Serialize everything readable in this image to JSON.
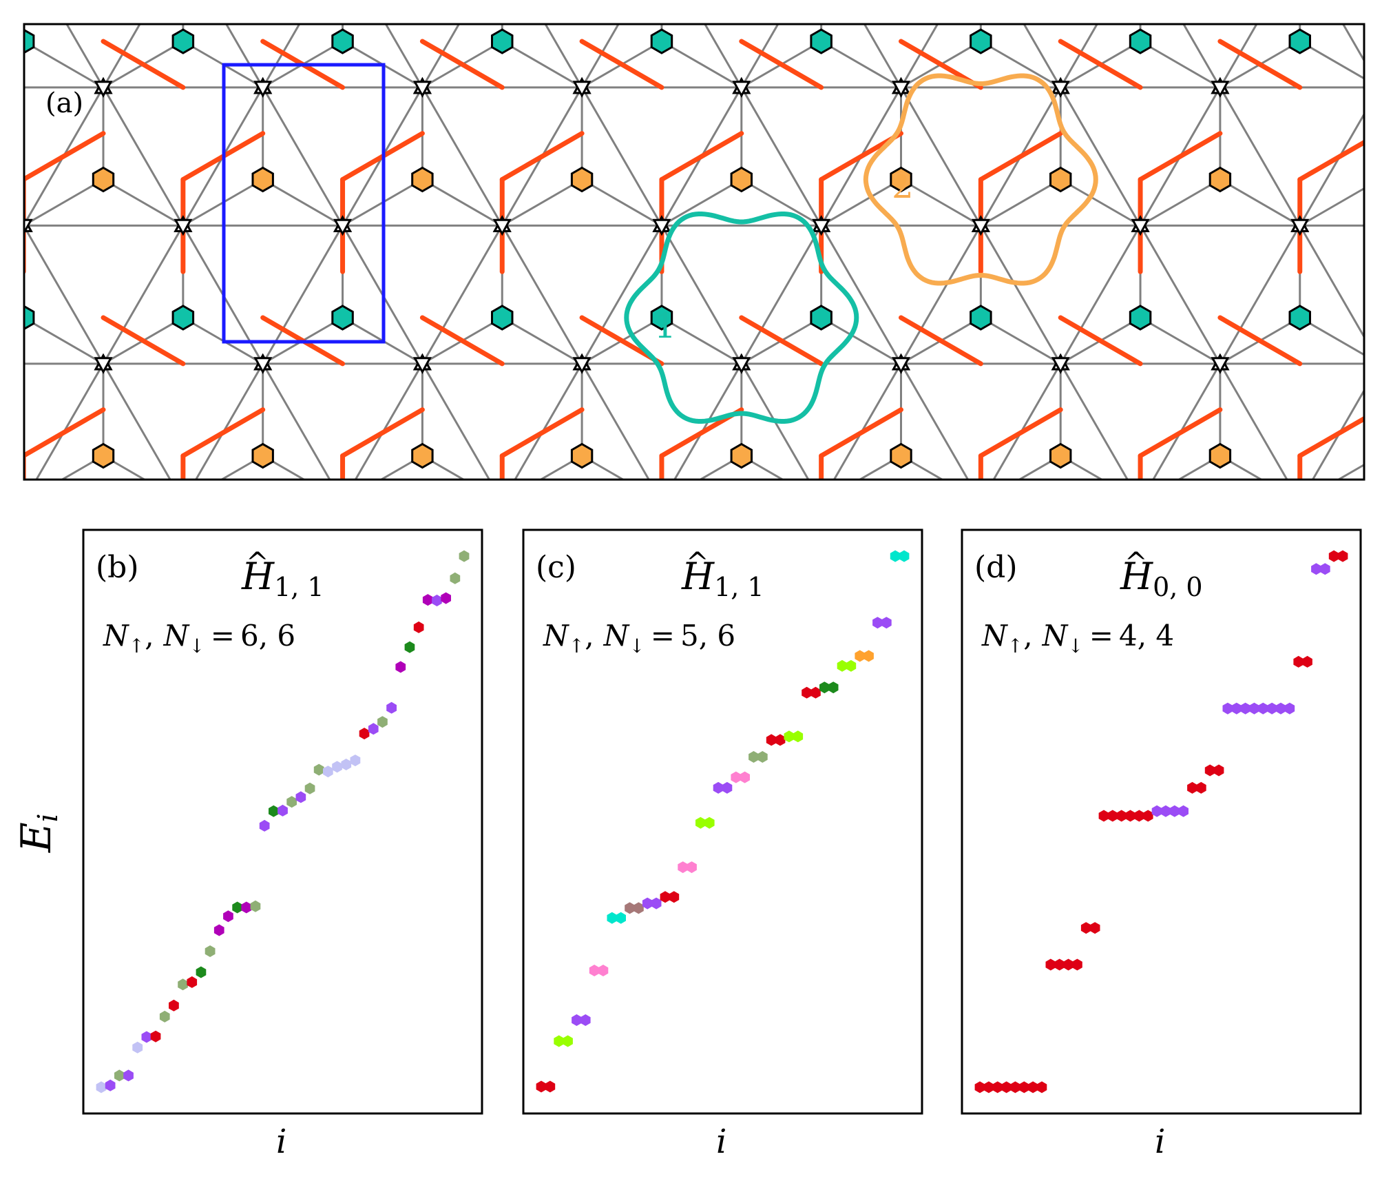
{
  "panel_a": {
    "label": "(a)",
    "loop1_label": "1",
    "loop2_label": "2",
    "colors": {
      "bond": "#808080",
      "strong_bond": "#ff4a14",
      "site_teal": "#10c2a8",
      "site_orange": "#f9a947",
      "unit_cell": "#1a1aff",
      "loop1": "#14bfa5",
      "loop2": "#f8ab4f"
    }
  },
  "shared": {
    "ylabel": "E",
    "ylabel_sub": "i",
    "xlabel": "i",
    "hat": "^",
    "comma": ",",
    "equals": "="
  },
  "chart_data": [
    {
      "type": "scatter",
      "panel_label": "(b)",
      "operator": "H",
      "operator_sub": "1, 1",
      "annotation": {
        "n_up": "N",
        "up_arrow": "↑",
        "n_down": "N",
        "down_arrow": "↓",
        "values": "6,  6"
      },
      "xlabel": "i",
      "ylabel": "E_i",
      "ylim": [
        0,
        100
      ],
      "points": [
        [
          1,
          4.5,
          "#c2c2f5"
        ],
        [
          2,
          4.8,
          "#9b4cf5"
        ],
        [
          3,
          6.5,
          "#8faf75"
        ],
        [
          4,
          6.5,
          "#9b4cf5"
        ],
        [
          5,
          11.3,
          "#c2c2f5"
        ],
        [
          6,
          13.1,
          "#9b4cf5"
        ],
        [
          7,
          13.2,
          "#de0014"
        ],
        [
          8,
          16.6,
          "#8faf75"
        ],
        [
          9,
          18.5,
          "#de0014"
        ],
        [
          10,
          22.1,
          "#8faf75"
        ],
        [
          11,
          22.5,
          "#de0014"
        ],
        [
          12,
          24.2,
          "#1c8a1c"
        ],
        [
          13,
          27.8,
          "#8faf75"
        ],
        [
          14,
          31.4,
          "#b000b8"
        ],
        [
          15,
          33.8,
          "#b000b8"
        ],
        [
          16,
          35.3,
          "#1c8a1c"
        ],
        [
          17,
          35.3,
          "#b000b8"
        ],
        [
          18,
          35.5,
          "#8faf75"
        ],
        [
          19,
          49.3,
          "#9b4cf5"
        ],
        [
          20,
          51.8,
          "#1c8a1c"
        ],
        [
          21,
          51.9,
          "#9b4cf5"
        ],
        [
          22,
          53.4,
          "#8faf75"
        ],
        [
          23,
          54.2,
          "#9b4cf5"
        ],
        [
          24,
          55.7,
          "#8faf75"
        ],
        [
          25,
          58.9,
          "#8faf75"
        ],
        [
          26,
          58.6,
          "#c2c2f5"
        ],
        [
          27,
          59.4,
          "#c2c2f5"
        ],
        [
          28,
          59.8,
          "#c2c2f5"
        ],
        [
          29,
          60.5,
          "#c2c2f5"
        ],
        [
          30,
          65.1,
          "#de0014"
        ],
        [
          31,
          65.9,
          "#9b4cf5"
        ],
        [
          32,
          67.1,
          "#8faf75"
        ],
        [
          33,
          69.5,
          "#9b4cf5"
        ],
        [
          34,
          76.5,
          "#b000b8"
        ],
        [
          35,
          79.9,
          "#1c8a1c"
        ],
        [
          36,
          83.3,
          "#de0014"
        ],
        [
          37,
          88.0,
          "#b000b8"
        ],
        [
          38,
          87.9,
          "#9b4cf5"
        ],
        [
          39,
          88.3,
          "#b000b8"
        ],
        [
          40,
          91.7,
          "#8faf75"
        ],
        [
          41,
          95.5,
          "#8faf75"
        ]
      ]
    },
    {
      "type": "scatter",
      "panel_label": "(c)",
      "operator": "H",
      "operator_sub": "1, 1",
      "annotation": {
        "n_up": "N",
        "up_arrow": "↑",
        "n_down": "N",
        "down_arrow": "↓",
        "values": "5,  6"
      },
      "xlabel": "i",
      "ylabel": "E_i",
      "ylim": [
        0,
        100
      ],
      "points": [
        [
          1,
          4.6,
          "#de0014"
        ],
        [
          2,
          4.6,
          "#de0014"
        ],
        [
          3,
          12.4,
          "#99ff00"
        ],
        [
          4,
          12.4,
          "#99ff00"
        ],
        [
          5,
          16.0,
          "#9b4cf5"
        ],
        [
          6,
          16.0,
          "#9b4cf5"
        ],
        [
          7,
          24.5,
          "#ff80d0"
        ],
        [
          8,
          24.5,
          "#ff80d0"
        ],
        [
          9,
          33.5,
          "#00e6cc"
        ],
        [
          10,
          33.5,
          "#00e6cc"
        ],
        [
          11,
          35.2,
          "#a67878"
        ],
        [
          12,
          35.2,
          "#a67878"
        ],
        [
          13,
          36.0,
          "#9b4cf5"
        ],
        [
          14,
          36.0,
          "#9b4cf5"
        ],
        [
          15,
          37.1,
          "#de0014"
        ],
        [
          16,
          37.1,
          "#de0014"
        ],
        [
          17,
          42.2,
          "#ff80d0"
        ],
        [
          18,
          42.2,
          "#ff80d0"
        ],
        [
          19,
          49.8,
          "#99ff00"
        ],
        [
          20,
          49.8,
          "#99ff00"
        ],
        [
          21,
          55.8,
          "#9b4cf5"
        ],
        [
          22,
          55.8,
          "#9b4cf5"
        ],
        [
          23,
          57.6,
          "#ff80d0"
        ],
        [
          24,
          57.6,
          "#ff80d0"
        ],
        [
          25,
          61.1,
          "#8faf75"
        ],
        [
          26,
          61.1,
          "#8faf75"
        ],
        [
          27,
          64.0,
          "#de0014"
        ],
        [
          28,
          64.0,
          "#de0014"
        ],
        [
          29,
          64.6,
          "#99ff00"
        ],
        [
          30,
          64.6,
          "#99ff00"
        ],
        [
          31,
          72.1,
          "#de0014"
        ],
        [
          32,
          72.1,
          "#de0014"
        ],
        [
          33,
          73.0,
          "#1c8a1c"
        ],
        [
          34,
          73.0,
          "#1c8a1c"
        ],
        [
          35,
          76.7,
          "#99ff00"
        ],
        [
          36,
          76.7,
          "#99ff00"
        ],
        [
          37,
          78.4,
          "#ffa22e"
        ],
        [
          38,
          78.4,
          "#ffa22e"
        ],
        [
          39,
          84.1,
          "#9b4cf5"
        ],
        [
          40,
          84.1,
          "#9b4cf5"
        ],
        [
          41,
          95.5,
          "#00e6cc"
        ],
        [
          42,
          95.5,
          "#00e6cc"
        ]
      ]
    },
    {
      "type": "scatter",
      "panel_label": "(d)",
      "operator": "H",
      "operator_sub": "0, 0",
      "annotation": {
        "n_up": "N",
        "up_arrow": "↑",
        "n_down": "N",
        "down_arrow": "↓",
        "values": "4,  4"
      },
      "xlabel": "i",
      "ylabel": "E_i",
      "ylim": [
        0,
        100
      ],
      "points": [
        [
          1,
          4.5,
          "#de0014"
        ],
        [
          2,
          4.5,
          "#de0014"
        ],
        [
          3,
          4.5,
          "#de0014"
        ],
        [
          4,
          4.5,
          "#de0014"
        ],
        [
          5,
          4.5,
          "#de0014"
        ],
        [
          6,
          4.5,
          "#de0014"
        ],
        [
          7,
          4.5,
          "#de0014"
        ],
        [
          8,
          4.5,
          "#de0014"
        ],
        [
          9,
          25.5,
          "#de0014"
        ],
        [
          10,
          25.5,
          "#de0014"
        ],
        [
          11,
          25.5,
          "#de0014"
        ],
        [
          12,
          25.5,
          "#de0014"
        ],
        [
          13,
          31.8,
          "#de0014"
        ],
        [
          14,
          31.8,
          "#de0014"
        ],
        [
          15,
          51.0,
          "#de0014"
        ],
        [
          16,
          51.0,
          "#de0014"
        ],
        [
          17,
          51.0,
          "#de0014"
        ],
        [
          18,
          51.0,
          "#de0014"
        ],
        [
          19,
          51.0,
          "#de0014"
        ],
        [
          20,
          51.0,
          "#de0014"
        ],
        [
          21,
          51.8,
          "#9b4cf5"
        ],
        [
          22,
          51.8,
          "#9b4cf5"
        ],
        [
          23,
          51.8,
          "#9b4cf5"
        ],
        [
          24,
          51.8,
          "#9b4cf5"
        ],
        [
          25,
          55.8,
          "#de0014"
        ],
        [
          26,
          55.8,
          "#de0014"
        ],
        [
          27,
          58.8,
          "#de0014"
        ],
        [
          28,
          58.8,
          "#de0014"
        ],
        [
          29,
          69.4,
          "#9b4cf5"
        ],
        [
          30,
          69.4,
          "#9b4cf5"
        ],
        [
          31,
          69.4,
          "#9b4cf5"
        ],
        [
          32,
          69.4,
          "#9b4cf5"
        ],
        [
          33,
          69.4,
          "#9b4cf5"
        ],
        [
          34,
          69.4,
          "#9b4cf5"
        ],
        [
          35,
          69.4,
          "#9b4cf5"
        ],
        [
          36,
          69.4,
          "#9b4cf5"
        ],
        [
          37,
          77.4,
          "#de0014"
        ],
        [
          38,
          77.4,
          "#de0014"
        ],
        [
          39,
          93.3,
          "#9b4cf5"
        ],
        [
          40,
          93.3,
          "#9b4cf5"
        ],
        [
          41,
          95.5,
          "#de0014"
        ],
        [
          42,
          95.5,
          "#de0014"
        ]
      ]
    }
  ]
}
